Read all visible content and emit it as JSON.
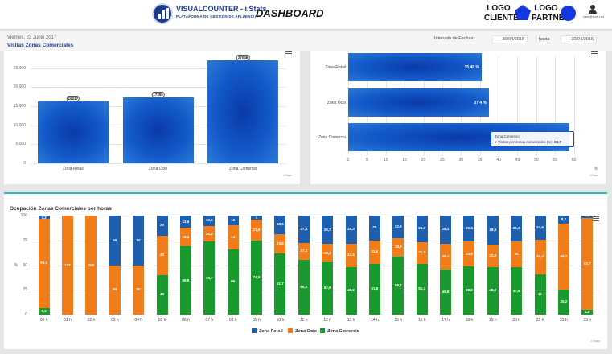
{
  "header": {
    "brand": "VISUALCOUNTER - i.Stats",
    "brand_sub": "PLATAFORMA DE GESTIÓN DE AFLUENCIA",
    "title": "DASHBOARD",
    "logo_cliente": "LOGO CLIENTE",
    "logo_partner": "LOGO PARTNER",
    "user_label": "user@isoft.net"
  },
  "toolbar": {
    "date": "Viernes, 23 Junio 2017",
    "subtitle": "Visitas Zonas Comerciales",
    "interval_label": "Intervalo de Fechas:",
    "from": "30/04/2016",
    "to_label": "hasta",
    "to": "30/04/2016"
  },
  "colors": {
    "retail": "#1f5fb0",
    "ocio": "#f07d1a",
    "comercio": "#1a9a2e",
    "accent": "#2bb5c8",
    "brand": "#1c3a8c"
  },
  "chart_data": [
    {
      "type": "bar",
      "categories": [
        "Zona Retail",
        "Zona Ocio",
        "Zona Comercio"
      ],
      "values": [
        16247,
        17395,
        27048
      ],
      "value_labels": [
        "16247",
        "17395",
        "27048"
      ],
      "ylim": [
        0,
        27500
      ],
      "yticks": [
        "0",
        "5.000",
        "10.000",
        "15.000",
        "20.000",
        "25.000"
      ],
      "credit": "i.Stats"
    },
    {
      "type": "bar",
      "orientation": "horizontal",
      "categories": [
        "Zona Retail",
        "Zona Ocio",
        "Zona Comercio"
      ],
      "values": [
        35.48,
        37.4,
        58.7
      ],
      "value_labels": [
        "35,48 %",
        "37,4 %",
        ""
      ],
      "xlim": [
        0,
        65
      ],
      "xticks": [
        "0",
        "5",
        "10",
        "15",
        "20",
        "25",
        "30",
        "35",
        "40",
        "45",
        "50",
        "55",
        "60"
      ],
      "xlabel": "%",
      "tooltip": {
        "title": "Zona Comercio",
        "series": "Visitas por zonas comerciales (%):",
        "value": "58,7"
      },
      "credit": "i.Stats"
    },
    {
      "type": "bar",
      "stacked": true,
      "title": "Ocupación Zonas Comerciales por horas",
      "ylabel": "%",
      "ylim": [
        0,
        100
      ],
      "yticks": [
        "0",
        "25",
        "50",
        "75",
        "100"
      ],
      "categories": [
        "00 h",
        "01 h",
        "02 h",
        "03 h",
        "04 h",
        "05 h",
        "06 h",
        "07 h",
        "08 h",
        "09 h",
        "10 h",
        "11 h",
        "12 h",
        "13 h",
        "14 h",
        "15 h",
        "16 h",
        "17 h",
        "18 h",
        "19 h",
        "20 h",
        "21 h",
        "22 h",
        "23 h"
      ],
      "series": [
        {
          "name": "Zona Retail",
          "color": "#1f5fb0",
          "values": [
            3.2,
            0,
            0,
            50,
            50,
            20,
            12.5,
            10.5,
            10,
            4,
            18.5,
            27.4,
            28.7,
            28.3,
            25,
            22.6,
            26.7,
            28.1,
            26.4,
            28.9,
            26.4,
            24.6,
            8.2,
            2.5
          ],
          "labels": [
            "3,2",
            "",
            "",
            "50",
            "50",
            "20",
            "12,5",
            "10,5",
            "10",
            "4",
            "18,5",
            "27,4",
            "28,7",
            "28,3",
            "25",
            "22,6",
            "26,7",
            "28,1",
            "26,4",
            "28,9",
            "26,4",
            "24,6",
            "8,2",
            "2,5"
          ]
        },
        {
          "name": "Zona Ocio",
          "color": "#f07d1a",
          "values": [
            90.3,
            100,
            100,
            50,
            50,
            40,
            18.8,
            15.8,
            24,
            21.5,
            19.8,
            17.3,
            18.3,
            23.5,
            23.5,
            18.6,
            21.9,
            26.1,
            24.8,
            22.8,
            26,
            34.4,
            66.7,
            92.7
          ],
          "labels": [
            "90,3",
            "100",
            "100",
            "50",
            "50",
            "40",
            "18,8",
            "15,8",
            "24",
            "21,5",
            "19,8",
            "17,3",
            "18,3",
            "23,5",
            "23,5",
            "18,6",
            "21,9",
            "26,1",
            "24,8",
            "22,8",
            "26",
            "34,4",
            "66,7",
            "92,7"
          ]
        },
        {
          "name": "Zona Comercio",
          "color": "#1a9a2e",
          "values": [
            6.5,
            0,
            0,
            0,
            0,
            40,
            68.8,
            73.7,
            66,
            74.5,
            61.7,
            55.3,
            52.9,
            48.2,
            51.5,
            58.7,
            51.4,
            45.8,
            48.8,
            48.3,
            47.6,
            41,
            25.2,
            4.9
          ],
          "labels": [
            "6,5",
            "0",
            "0",
            "0",
            "0",
            "40",
            "68,8",
            "73,7",
            "66",
            "74,5",
            "61,7",
            "55,3",
            "52,9",
            "48,2",
            "51,5",
            "58,7",
            "51,4",
            "45,8",
            "48,8",
            "48,3",
            "47,6",
            "41",
            "25,2",
            "4,9"
          ]
        }
      ],
      "legend": "bottom-center",
      "credit": "i.Stats"
    }
  ]
}
